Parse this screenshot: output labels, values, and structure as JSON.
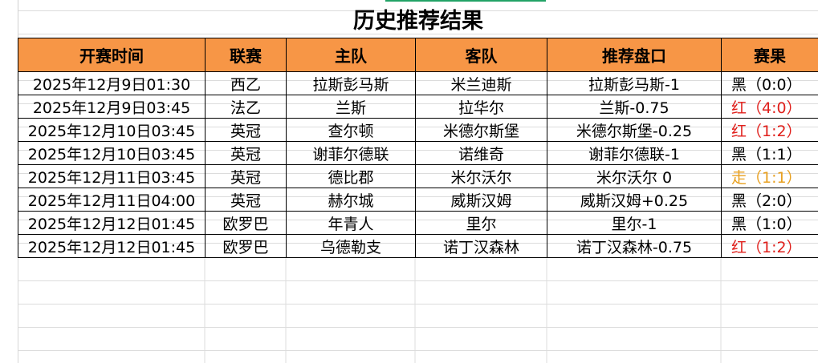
{
  "sheet": {
    "title": "历史推荐结果",
    "header": [
      "开赛时间",
      "联赛",
      "主队",
      "客队",
      "推荐盘口",
      "赛果"
    ],
    "rows": [
      [
        "2025年12月9日01:30",
        "西乙",
        "拉斯彭马斯",
        "米兰迪斯",
        "拉斯彭马斯-1",
        "黑（0:0）"
      ],
      [
        "2025年12月9日03:45",
        "法乙",
        "兰斯",
        "拉华尔",
        "兰斯-0.75",
        "红（4:0）"
      ],
      [
        "2025年12月10日03:45",
        "英冠",
        "查尔顿",
        "米德尔斯堡",
        "米德尔斯堡-0.25",
        "红（1:2）"
      ],
      [
        "2025年12月10日03:45",
        "英冠",
        "谢菲尔德联",
        "诺维奇",
        "谢菲尔德联-1",
        "黑（1:1）"
      ],
      [
        "2025年12月11日03:45",
        "英冠",
        "德比郡",
        "米尔沃尔",
        "米尔沃尔 0",
        "走（1:1）"
      ],
      [
        "2025年12月11日04:00",
        "英冠",
        "赫尔城",
        "威斯汉姆",
        "威斯汉姆+0.25",
        "黑（2:0）"
      ],
      [
        "2025年12月12日01:45",
        "欧罗巴",
        "年青人",
        "里尔",
        "里尔-1",
        "黑（1:0）"
      ],
      [
        "2025年12月12日01:45",
        "欧罗巴",
        "乌德勒支",
        "诺丁汉森林",
        "诺丁汉森林-0.75",
        "红（1:2）"
      ]
    ],
    "result_colors": [
      "#000000",
      "#e0201c",
      "#e0201c",
      "#000000",
      "#e8a020",
      "#000000",
      "#000000",
      "#e0201c"
    ]
  }
}
